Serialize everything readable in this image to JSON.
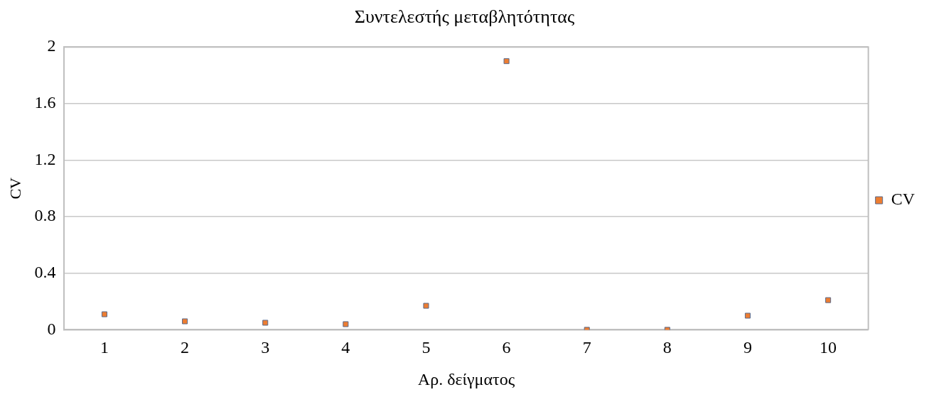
{
  "chart_data": {
    "type": "scatter",
    "title": "Συντελεστής μεταβλητότητας",
    "xlabel": "Αρ. δείγματος",
    "ylabel": "CV",
    "categories": [
      "1",
      "2",
      "3",
      "4",
      "5",
      "6",
      "7",
      "8",
      "9",
      "10"
    ],
    "series": [
      {
        "name": "CV",
        "color": "#ed7d31",
        "values": [
          0.11,
          0.06,
          0.05,
          0.04,
          0.17,
          1.9,
          0,
          0,
          0.1,
          0.21
        ]
      }
    ],
    "ylim": [
      0,
      2
    ],
    "yticks": [
      0,
      0.4,
      0.8,
      1.2,
      1.6,
      2
    ],
    "grid": "y",
    "legend": "right",
    "marker": "square"
  }
}
